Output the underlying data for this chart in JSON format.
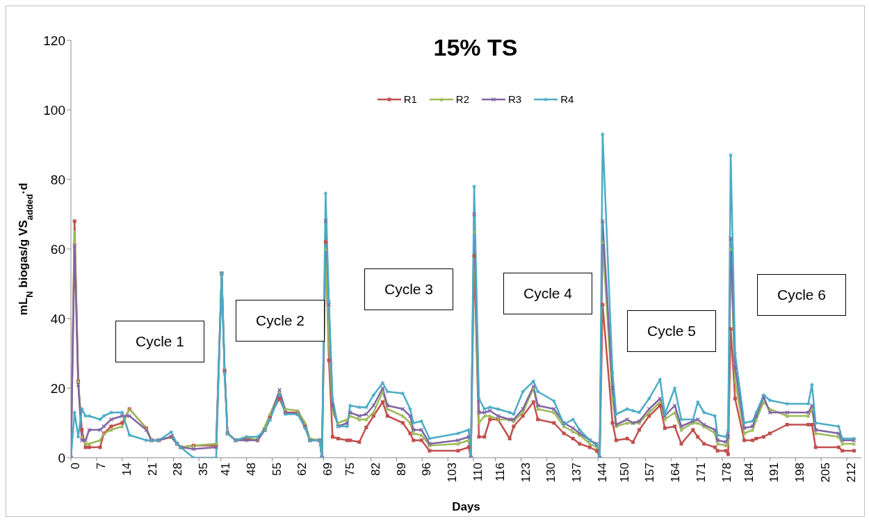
{
  "chart_data": {
    "type": "line",
    "title": "15% TS",
    "xlabel": "Days",
    "ylabel": "mL$_{N}$ biogas/g VS$_{added}$·d",
    "x": [
      0,
      1,
      2,
      3,
      4,
      5,
      8,
      9,
      11,
      14,
      16,
      20.6,
      22,
      24,
      27.4,
      29,
      30,
      33.5,
      39.7,
      41.2,
      42,
      42.8,
      45,
      48,
      51,
      53,
      54.4,
      57,
      58.6,
      62,
      64,
      65.3,
      68,
      68.6,
      69.6,
      70.5,
      71.5,
      73,
      75.5,
      76.3,
      78.8,
      80.7,
      82.7,
      85.2,
      86.5,
      90.7,
      92.7,
      93.6,
      95.8,
      98,
      105.8,
      108.7,
      109.3,
      110.2,
      111.5,
      113,
      114.5,
      116.7,
      119.9,
      121,
      123.5,
      126.4,
      127.6,
      132,
      134.7,
      137.2,
      139,
      141.8,
      143.7,
      144.5,
      145.3,
      148,
      149,
      152,
      153.6,
      155.3,
      158,
      161,
      162.3,
      165,
      166.8,
      170,
      171.3,
      173,
      176,
      176.7,
      179,
      179.6,
      180.3,
      181.5,
      184,
      186.3,
      187.3,
      189.3,
      191,
      195.7,
      201.5,
      202.5,
      203.5,
      209.8,
      210.8,
      214
    ],
    "series": [
      {
        "name": "R1",
        "color": "#c0504d",
        "marker": "square",
        "values": [
          0,
          68,
          22,
          8,
          3,
          3,
          3,
          7,
          9,
          10,
          14,
          8.5,
          5,
          5,
          6,
          4,
          3,
          3.5,
          3.5,
          53,
          25,
          7,
          5,
          5.5,
          5,
          8,
          12,
          17,
          13,
          13,
          9,
          5,
          5,
          0,
          62,
          28,
          6,
          5.5,
          5,
          5,
          4.5,
          8.7,
          12,
          16,
          12,
          10,
          7,
          5,
          5,
          2,
          2,
          3,
          0,
          58,
          6,
          6,
          11,
          11,
          5.5,
          9,
          12,
          16,
          11,
          10,
          7,
          5.5,
          4,
          3,
          2,
          0,
          44,
          10,
          5,
          5.5,
          4.5,
          8,
          12,
          15,
          8.5,
          9,
          4,
          8,
          6,
          4,
          3,
          2,
          2,
          1,
          37,
          17,
          5,
          5,
          5.5,
          6,
          7,
          9.5,
          9.5,
          9.5,
          3,
          3,
          2,
          2
        ]
      },
      {
        "name": "R2",
        "color": "#9bbb59",
        "marker": "triangle",
        "values": [
          0,
          65,
          22,
          6,
          4,
          4,
          5,
          7,
          8,
          9,
          14,
          8.5,
          5,
          5,
          6,
          4,
          3,
          3.5,
          4,
          53,
          25,
          7,
          5,
          6,
          5,
          9,
          12.5,
          19,
          14,
          13.5,
          10,
          5.5,
          5,
          0,
          60,
          33,
          13,
          10,
          11,
          12,
          11,
          11,
          13,
          19,
          14,
          12,
          10,
          7,
          6.5,
          3.5,
          4,
          5,
          0,
          65,
          10,
          12,
          12,
          11,
          11,
          10.5,
          13,
          20,
          14,
          13,
          9,
          7.5,
          6.5,
          4,
          3,
          0,
          62,
          17,
          9,
          10,
          10,
          10,
          13,
          16,
          11,
          13,
          8,
          10,
          10,
          9,
          7,
          4,
          3.5,
          4,
          60,
          22,
          7,
          8,
          11,
          16,
          14,
          12,
          12,
          14,
          7,
          6,
          4,
          4
        ]
      },
      {
        "name": "R3",
        "color": "#8064a2",
        "marker": "cross",
        "values": [
          0,
          61,
          21,
          5,
          5,
          8,
          8,
          9,
          11,
          12,
          12,
          8,
          5,
          5,
          6,
          4,
          3,
          2.5,
          3,
          53,
          25,
          7,
          5,
          5,
          5,
          8,
          11,
          19.5,
          13,
          12.5,
          9,
          5,
          5,
          0,
          68,
          44,
          15,
          9,
          10,
          13,
          12,
          12.5,
          15,
          20,
          15,
          14,
          12,
          8,
          8,
          4,
          5,
          6,
          0,
          70,
          13,
          13,
          13.5,
          12,
          11,
          11,
          14,
          20.5,
          15,
          14,
          10,
          8.5,
          7,
          5,
          4,
          0,
          68,
          20,
          9.5,
          11,
          10,
          10.5,
          14,
          17,
          12,
          15,
          9,
          10.5,
          11,
          9.5,
          8,
          5,
          4.5,
          6,
          63,
          26,
          8.5,
          9,
          12,
          17.5,
          13,
          13,
          13,
          15,
          8,
          7,
          5,
          5
        ]
      },
      {
        "name": "R4",
        "color": "#4bacc6",
        "marker": "star",
        "values": [
          0,
          13,
          6,
          14,
          12,
          12,
          11,
          12,
          13,
          13,
          6.5,
          5,
          5,
          5,
          7.4,
          4,
          3,
          0,
          0,
          53,
          24,
          7,
          5,
          6,
          6,
          8,
          11,
          18,
          12.5,
          12.5,
          8.5,
          5,
          5,
          0,
          76,
          45,
          17,
          9,
          9,
          15,
          14.5,
          14.5,
          18,
          21.5,
          19,
          18.5,
          14,
          10,
          10.5,
          5.5,
          7,
          8,
          0,
          78,
          17,
          14,
          14.5,
          14,
          13,
          12.5,
          19,
          22,
          19,
          16.3,
          9.6,
          11,
          8,
          5,
          3.5,
          0,
          93,
          24.5,
          12.5,
          14,
          13.5,
          13,
          17,
          22.5,
          12.5,
          20,
          11,
          11,
          16,
          13,
          12,
          6.5,
          6,
          8,
          87,
          30,
          10,
          10.5,
          13,
          18,
          16.5,
          15.5,
          15.5,
          21,
          10,
          9,
          5.5,
          5.5
        ]
      }
    ],
    "xlim": [
      0,
      216
    ],
    "xticks": [
      0,
      7,
      14,
      21,
      28,
      35,
      41,
      48,
      55,
      62,
      69,
      75,
      82,
      89,
      96,
      103,
      110,
      116,
      123,
      130,
      137,
      144,
      150,
      157,
      164,
      171,
      178,
      184,
      191,
      198,
      205,
      212
    ],
    "ylim": [
      0,
      120
    ],
    "yticks": [
      0,
      20,
      40,
      60,
      80,
      100,
      120
    ],
    "grid": false,
    "legend": "top",
    "annotations": [
      "Cycle 1",
      "Cycle 2",
      "Cycle 3",
      "Cycle 4",
      "Cycle 5",
      "Cycle 6"
    ]
  }
}
